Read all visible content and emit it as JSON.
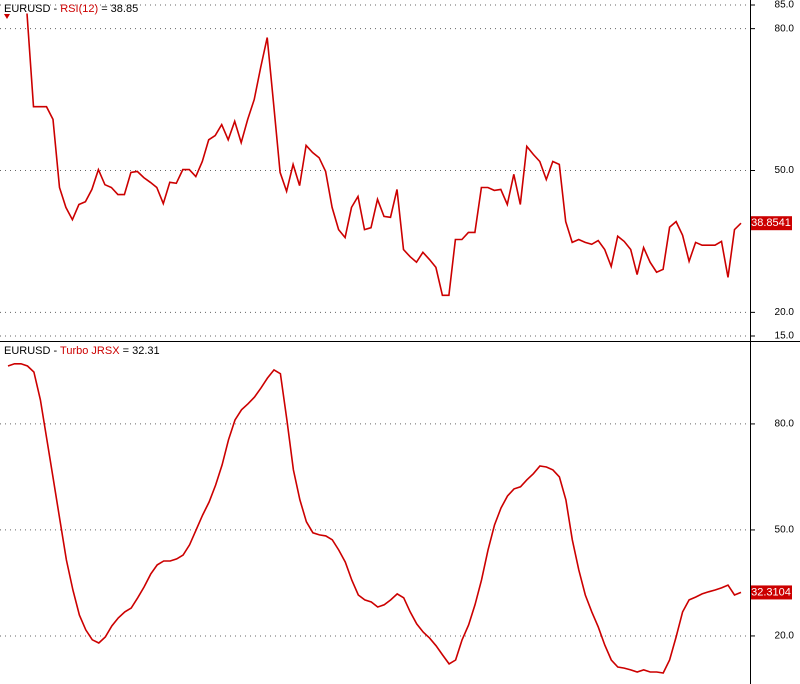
{
  "chart_data": [
    {
      "type": "line",
      "title": {
        "symbol": "EURUSD - ",
        "indicator": "RSI(12)",
        "reading": " = 38.85"
      },
      "last_value_label": "38.8541",
      "series": [
        {
          "name": "RSI(12)",
          "color": "#cc0000",
          "values": [
            83.2,
            63.5,
            63.5,
            63.5,
            60.8,
            46.4,
            42.2,
            39.6,
            42.8,
            43.4,
            46.0,
            50.2,
            47.0,
            46.4,
            44.9,
            44.9,
            49.6,
            49.8,
            48.5,
            47.5,
            46.4,
            43.0,
            47.5,
            47.3,
            50.2,
            50.2,
            48.7,
            51.9,
            56.5,
            57.4,
            59.7,
            56.5,
            60.4,
            55.9,
            60.8,
            65.0,
            71.8,
            78.1,
            63.9,
            49.6,
            45.6,
            51.3,
            46.8,
            55.3,
            53.8,
            52.7,
            49.8,
            42.2,
            37.5,
            35.8,
            42.2,
            44.5,
            37.5,
            37.9,
            43.9,
            40.3,
            40.1,
            46.0,
            33.3,
            31.8,
            30.6,
            32.7,
            31.2,
            29.5,
            23.6,
            23.6,
            35.4,
            35.4,
            36.9,
            36.9,
            46.4,
            46.4,
            45.8,
            46.0,
            42.8,
            49.2,
            42.8,
            55.1,
            53.4,
            51.9,
            48.1,
            51.9,
            51.3,
            39.2,
            34.8,
            35.4,
            34.8,
            34.4,
            35.2,
            33.3,
            29.7,
            36.1,
            35.0,
            33.3,
            28.0,
            33.7,
            30.6,
            28.5,
            29.1,
            38.0,
            39.2,
            36.3,
            30.8,
            34.8,
            34.2,
            34.2,
            34.2,
            35.0,
            27.4,
            37.5,
            38.8541
          ]
        }
      ],
      "ylim": [
        15,
        85
      ],
      "yticks": [
        {
          "value": 15,
          "label": "15.0"
        },
        {
          "value": 20,
          "label": "20.0"
        },
        {
          "value": 50,
          "label": "50.0"
        },
        {
          "value": 80,
          "label": "80.0"
        },
        {
          "value": 85,
          "label": "85.0"
        }
      ],
      "grid": true
    },
    {
      "type": "line",
      "title": {
        "symbol": "EURUSD - ",
        "indicator": "Turbo JRSX",
        "reading": " = 32.31"
      },
      "last_value_label": "32.3104",
      "series": [
        {
          "name": "Turbo JRSX",
          "color": "#cc0000",
          "values": [
            96.4,
            97.0,
            97.0,
            96.4,
            94.7,
            86.8,
            75.5,
            64.2,
            52.8,
            41.5,
            33.0,
            25.9,
            21.7,
            18.9,
            18.0,
            19.7,
            22.8,
            25.1,
            26.8,
            27.9,
            30.8,
            33.9,
            37.5,
            40.1,
            41.2,
            41.2,
            41.8,
            42.9,
            45.8,
            50.0,
            54.2,
            57.9,
            62.7,
            68.4,
            75.5,
            81.1,
            84.0,
            85.7,
            87.6,
            90.2,
            93.0,
            95.3,
            94.2,
            81.1,
            67.0,
            58.5,
            52.3,
            49.2,
            48.6,
            48.3,
            47.2,
            44.3,
            40.9,
            35.8,
            31.6,
            30.2,
            29.6,
            28.2,
            28.8,
            30.2,
            31.9,
            30.8,
            26.8,
            23.4,
            21.1,
            19.4,
            17.2,
            14.6,
            12.1,
            13.2,
            18.9,
            23.1,
            28.8,
            35.8,
            44.3,
            51.4,
            56.2,
            59.6,
            61.6,
            62.2,
            64.2,
            65.9,
            68.1,
            67.8,
            67.0,
            65.0,
            58.5,
            47.2,
            38.7,
            31.6,
            26.8,
            22.5,
            17.4,
            13.2,
            11.2,
            10.9,
            10.4,
            9.8,
            10.4,
            9.8,
            9.8,
            9.5,
            13.2,
            19.7,
            26.8,
            30.2,
            31.0,
            31.9,
            32.5,
            33.0,
            33.6,
            34.4,
            31.6,
            32.3104
          ]
        }
      ],
      "ylim": [
        6.4,
        102.9
      ],
      "yticks": [
        {
          "value": 20,
          "label": "20.0"
        },
        {
          "value": 50,
          "label": "50.0"
        },
        {
          "value": 80,
          "label": "80.0"
        }
      ],
      "grid": true
    }
  ]
}
